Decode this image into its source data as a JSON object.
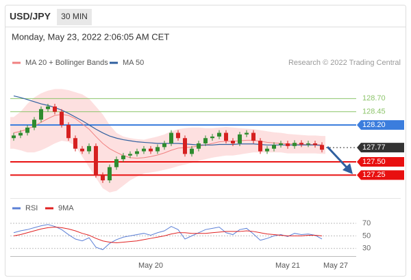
{
  "header": {
    "symbol": "USD/JPY",
    "interval": "30 MIN",
    "timestamp": "Monday, May 23, 2022 2:06:05 AM CET"
  },
  "chart_data": [
    {
      "type": "candlestick",
      "credit": "Research © 2022 Trading Central",
      "up_color": "#2e8b2e",
      "down_color": "#d62020",
      "ylim": [
        126.84,
        128.95
      ],
      "open": [
        127.95,
        128.0,
        128.05,
        128.15,
        128.3,
        128.5,
        128.55,
        128.45,
        128.2,
        127.95,
        127.75,
        127.7,
        127.8,
        127.25,
        127.15,
        127.4,
        127.55,
        127.62,
        127.65,
        127.7,
        127.75,
        127.7,
        127.78,
        127.85,
        128.05,
        127.95,
        127.65,
        127.75,
        127.85,
        127.95,
        127.98,
        128.05,
        127.9,
        127.85,
        128.02,
        128.05,
        127.9,
        127.7,
        127.75,
        127.82,
        127.85,
        127.8,
        127.86,
        127.83,
        127.85,
        127.82,
        null,
        null,
        null,
        null
      ],
      "high": [
        128.05,
        128.1,
        128.2,
        128.35,
        128.55,
        128.6,
        128.6,
        128.5,
        128.25,
        128.0,
        127.8,
        127.85,
        127.85,
        127.3,
        127.45,
        127.6,
        127.67,
        127.7,
        127.75,
        127.8,
        127.8,
        127.83,
        127.9,
        128.1,
        128.1,
        128.0,
        127.8,
        127.9,
        128.0,
        128.03,
        128.1,
        128.1,
        127.95,
        128.07,
        128.1,
        128.1,
        127.95,
        127.8,
        127.87,
        127.9,
        127.9,
        127.91,
        127.91,
        127.9,
        127.9,
        127.87,
        null,
        null,
        null,
        null
      ],
      "low": [
        127.9,
        127.95,
        128.0,
        128.1,
        128.25,
        128.45,
        128.4,
        128.15,
        127.9,
        127.7,
        127.65,
        127.65,
        127.2,
        127.1,
        127.1,
        127.35,
        127.5,
        127.57,
        127.6,
        127.65,
        127.65,
        127.65,
        127.73,
        127.8,
        127.9,
        127.6,
        127.6,
        127.7,
        127.8,
        127.9,
        127.93,
        127.85,
        127.8,
        127.8,
        127.97,
        127.85,
        127.65,
        127.65,
        127.7,
        127.77,
        127.75,
        127.75,
        127.78,
        127.78,
        127.77,
        127.68,
        null,
        null,
        null,
        null
      ],
      "close": [
        128.0,
        128.05,
        128.15,
        128.3,
        128.5,
        128.55,
        128.45,
        128.2,
        127.95,
        127.75,
        127.7,
        127.8,
        127.25,
        127.15,
        127.4,
        127.55,
        127.62,
        127.65,
        127.7,
        127.75,
        127.7,
        127.78,
        127.85,
        128.05,
        127.95,
        127.65,
        127.75,
        127.85,
        127.95,
        127.98,
        128.05,
        127.9,
        127.85,
        128.02,
        128.05,
        127.9,
        127.7,
        127.75,
        127.82,
        127.85,
        127.8,
        127.86,
        127.83,
        127.85,
        127.82,
        127.73,
        null,
        null,
        null,
        null
      ],
      "series": [
        {
          "name": "MA 20 + Bollinger Bands",
          "color": "#f08080",
          "band_color": "#fde0e0",
          "values": [
            128.05,
            128.08,
            128.12,
            128.18,
            128.25,
            128.32,
            128.38,
            128.4,
            128.38,
            128.32,
            128.22,
            128.12,
            127.98,
            127.85,
            127.75,
            127.68,
            127.62,
            127.58,
            127.57,
            127.58,
            127.6,
            127.63,
            127.67,
            127.72,
            127.76,
            127.77,
            127.78,
            127.8,
            127.82,
            127.85,
            127.88,
            127.89,
            127.89,
            127.9,
            127.91,
            127.91,
            127.89,
            127.87,
            127.86,
            127.85,
            127.84,
            127.84,
            127.83,
            127.83,
            127.83,
            127.82,
            null,
            null,
            null,
            null
          ],
          "upper": [
            128.35,
            128.45,
            128.6,
            128.72,
            128.8,
            128.85,
            128.88,
            128.88,
            128.86,
            128.82,
            128.78,
            128.7,
            128.55,
            128.4,
            128.2,
            128.05,
            127.98,
            127.95,
            127.93,
            127.92,
            127.95,
            127.98,
            128.02,
            128.08,
            128.12,
            128.14,
            128.15,
            128.15,
            128.14,
            128.14,
            128.15,
            128.16,
            128.15,
            128.14,
            128.13,
            128.12,
            128.1,
            128.08,
            128.06,
            128.05,
            128.03,
            128.02,
            128.01,
            128.0,
            128.0,
            127.99,
            null,
            null,
            null,
            null
          ],
          "lower": [
            127.75,
            127.72,
            127.68,
            127.68,
            127.72,
            127.78,
            127.85,
            127.9,
            127.88,
            127.8,
            127.6,
            127.4,
            127.2,
            127.0,
            126.92,
            126.95,
            127.05,
            127.15,
            127.22,
            127.28,
            127.3,
            127.32,
            127.35,
            127.38,
            127.42,
            127.45,
            127.48,
            127.52,
            127.55,
            127.58,
            127.6,
            127.62,
            127.62,
            127.64,
            127.66,
            127.68,
            127.68,
            127.68,
            127.68,
            127.68,
            127.66,
            127.66,
            127.66,
            127.66,
            127.66,
            127.65,
            null,
            null,
            null,
            null
          ]
        },
        {
          "name": "MA 50",
          "color": "#2f5f9f",
          "values": [
            128.75,
            128.72,
            128.68,
            128.64,
            128.6,
            128.57,
            128.53,
            128.48,
            128.42,
            128.35,
            128.28,
            128.2,
            128.12,
            128.05,
            127.99,
            127.95,
            127.92,
            127.9,
            127.88,
            127.87,
            127.86,
            127.85,
            127.85,
            127.85,
            127.85,
            127.84,
            127.83,
            127.82,
            127.82,
            127.82,
            127.83,
            127.83,
            127.83,
            127.84,
            127.84,
            127.84,
            127.83,
            127.82,
            127.82,
            127.82,
            127.82,
            127.82,
            127.82,
            127.82,
            127.82,
            127.81,
            null,
            null,
            null,
            null
          ]
        }
      ],
      "levels": [
        {
          "value": 128.7,
          "label": "128.70",
          "color": "#8cc46a",
          "box": false,
          "dash": false
        },
        {
          "value": 128.45,
          "label": "128.45",
          "color": "#8cc46a",
          "box": false,
          "dash": false
        },
        {
          "value": 128.2,
          "label": "128.20",
          "color": "#3b7ddd",
          "box": true,
          "dash": false
        },
        {
          "value": 127.77,
          "label": "127.77",
          "color": "#333333",
          "box": true,
          "dash": true
        },
        {
          "value": 127.5,
          "label": "127.50",
          "color": "#e81010",
          "box": true,
          "dash": false
        },
        {
          "value": 127.25,
          "label": "127.25",
          "color": "#e81010",
          "box": true,
          "dash": false
        }
      ]
    },
    {
      "type": "line",
      "categories": [
        null,
        null,
        null,
        null,
        null,
        null,
        null,
        null,
        null,
        null,
        null,
        null,
        null,
        null,
        null,
        null,
        null,
        null,
        null,
        null,
        "May 20",
        null,
        null,
        null,
        null,
        null,
        null,
        null,
        null,
        null,
        null,
        null,
        null,
        null,
        null,
        null,
        null,
        null,
        null,
        null,
        "May 21",
        null,
        null,
        null,
        null,
        null,
        null,
        "May 27",
        null,
        null
      ],
      "ylim": [
        20,
        83
      ],
      "yticks": [
        30,
        50,
        70
      ],
      "grid": true,
      "series": [
        {
          "name": "RSI",
          "color": "#5b7fd6",
          "values": [
            55,
            58,
            60,
            63,
            66,
            68,
            65,
            60,
            52,
            45,
            42,
            47,
            32,
            28,
            38,
            44,
            48,
            50,
            52,
            54,
            51,
            55,
            58,
            65,
            60,
            45,
            50,
            55,
            60,
            62,
            64,
            55,
            52,
            60,
            62,
            53,
            43,
            46,
            50,
            52,
            49,
            54,
            52,
            53,
            51,
            45,
            null,
            null,
            null,
            null
          ]
        },
        {
          "name": "9MA",
          "color": "#e02020",
          "values": [
            50,
            52,
            55,
            58,
            61,
            63,
            64,
            63,
            61,
            58,
            54,
            51,
            46,
            42,
            40,
            39,
            40,
            41,
            42,
            44,
            46,
            48,
            50,
            53,
            55,
            55,
            54,
            54,
            54,
            55,
            56,
            57,
            57,
            57,
            58,
            57,
            55,
            53,
            52,
            51,
            50,
            50,
            50,
            51,
            51,
            50,
            null,
            null,
            null,
            null
          ]
        }
      ]
    }
  ]
}
